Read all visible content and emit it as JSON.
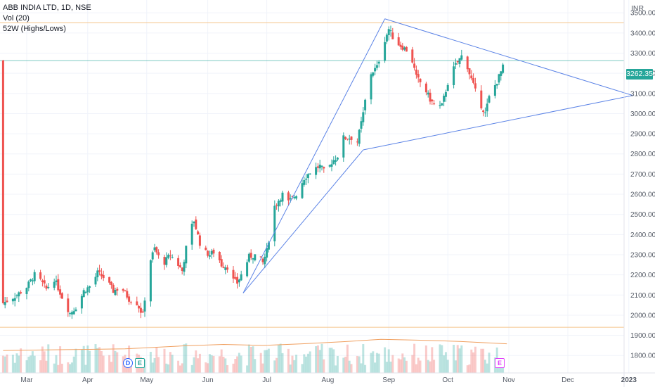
{
  "legend": {
    "symbol": "ABB INDIA LTD, 1D, NSE",
    "volume": "Vol (20)",
    "highs_lows": "52W (Highs/Lows)"
  },
  "currency": "INR",
  "last_price_label": "3262.35",
  "markers": {
    "dividend": "D",
    "earnings_past": "E",
    "earnings_next": "E"
  },
  "colors": {
    "up": "#26a69a",
    "down": "#ef5350",
    "trendline": "#5b83e6",
    "vol_ma": "#f0a060",
    "high_line": "#f5c48a",
    "last_price": "#26a69a"
  },
  "chart_data": {
    "type": "candlestick",
    "symbol": "ABB INDIA LTD",
    "interval": "1D",
    "exchange": "NSE",
    "ylim": [
      1780,
      3560
    ],
    "y_ticks": [
      1800,
      1900,
      2000,
      2100,
      2200,
      2300,
      2400,
      2500,
      2600,
      2700,
      2800,
      2900,
      3000,
      3100,
      3200,
      3300,
      3400,
      3500
    ],
    "x_tick_labels": [
      "Mar",
      "Apr",
      "May",
      "Jun",
      "Jul",
      "Aug",
      "Sep",
      "Oct",
      "Nov",
      "Dec",
      "2023"
    ],
    "x_tick_days": [
      0,
      31,
      61,
      92,
      122,
      153,
      184,
      214,
      245,
      275,
      306
    ],
    "last_price": 3262.35,
    "fifty_two_week_high": 3450,
    "fifty_two_week_low": 1940,
    "close_path": [
      [
        -12,
        2060
      ],
      [
        -5,
        2100
      ],
      [
        0,
        2140
      ],
      [
        4,
        2200
      ],
      [
        7,
        2170
      ],
      [
        10,
        2130
      ],
      [
        14,
        2180
      ],
      [
        18,
        2090
      ],
      [
        22,
        2010
      ],
      [
        26,
        2050
      ],
      [
        29,
        2120
      ],
      [
        33,
        2150
      ],
      [
        36,
        2210
      ],
      [
        40,
        2180
      ],
      [
        44,
        2120
      ],
      [
        48,
        2140
      ],
      [
        52,
        2080
      ],
      [
        56,
        2060
      ],
      [
        59,
        2000
      ],
      [
        62,
        2250
      ],
      [
        65,
        2330
      ],
      [
        69,
        2250
      ],
      [
        73,
        2300
      ],
      [
        77,
        2250
      ],
      [
        79,
        2220
      ],
      [
        82,
        2390
      ],
      [
        85,
        2470
      ],
      [
        89,
        2320
      ],
      [
        93,
        2300
      ],
      [
        96,
        2320
      ],
      [
        99,
        2250
      ],
      [
        102,
        2240
      ],
      [
        104,
        2180
      ],
      [
        107,
        2160
      ],
      [
        110,
        2220
      ],
      [
        113,
        2290
      ],
      [
        117,
        2300
      ],
      [
        120,
        2260
      ],
      [
        122,
        2320
      ],
      [
        126,
        2540
      ],
      [
        130,
        2600
      ],
      [
        133,
        2560
      ],
      [
        137,
        2600
      ],
      [
        141,
        2680
      ],
      [
        145,
        2720
      ],
      [
        149,
        2740
      ],
      [
        152,
        2700
      ],
      [
        155,
        2760
      ],
      [
        158,
        2790
      ],
      [
        161,
        2880
      ],
      [
        165,
        2880
      ],
      [
        168,
        2860
      ],
      [
        171,
        3000
      ],
      [
        174,
        3190
      ],
      [
        178,
        3230
      ],
      [
        181,
        3340
      ],
      [
        184,
        3420
      ],
      [
        187,
        3360
      ],
      [
        191,
        3330
      ],
      [
        195,
        3300
      ],
      [
        198,
        3180
      ],
      [
        202,
        3130
      ],
      [
        205,
        3070
      ],
      [
        208,
        3030
      ],
      [
        211,
        3040
      ],
      [
        215,
        3190
      ],
      [
        218,
        3240
      ],
      [
        222,
        3300
      ],
      [
        225,
        3200
      ],
      [
        229,
        3080
      ],
      [
        233,
        3000
      ],
      [
        235,
        3080
      ],
      [
        239,
        3160
      ],
      [
        242,
        3230
      ],
      [
        244,
        3262.35
      ]
    ],
    "volume_ma_path": [
      [
        -12,
        1825
      ],
      [
        20,
        1829
      ],
      [
        50,
        1833
      ],
      [
        60,
        1838
      ],
      [
        80,
        1848
      ],
      [
        100,
        1855
      ],
      [
        120,
        1850
      ],
      [
        140,
        1858
      ],
      [
        160,
        1868
      ],
      [
        180,
        1880
      ],
      [
        200,
        1876
      ],
      [
        220,
        1870
      ],
      [
        244,
        1858
      ]
    ],
    "trendlines": [
      {
        "from": [
          110,
          2110
        ],
        "to": [
          182,
          3470
        ]
      },
      {
        "from": [
          110,
          2110
        ],
        "to": [
          171,
          2820
        ]
      },
      {
        "from": [
          171,
          2820
        ],
        "to": [
          308,
          3090
        ]
      },
      {
        "from": [
          182,
          3470
        ],
        "to": [
          308,
          3090
        ]
      }
    ]
  }
}
